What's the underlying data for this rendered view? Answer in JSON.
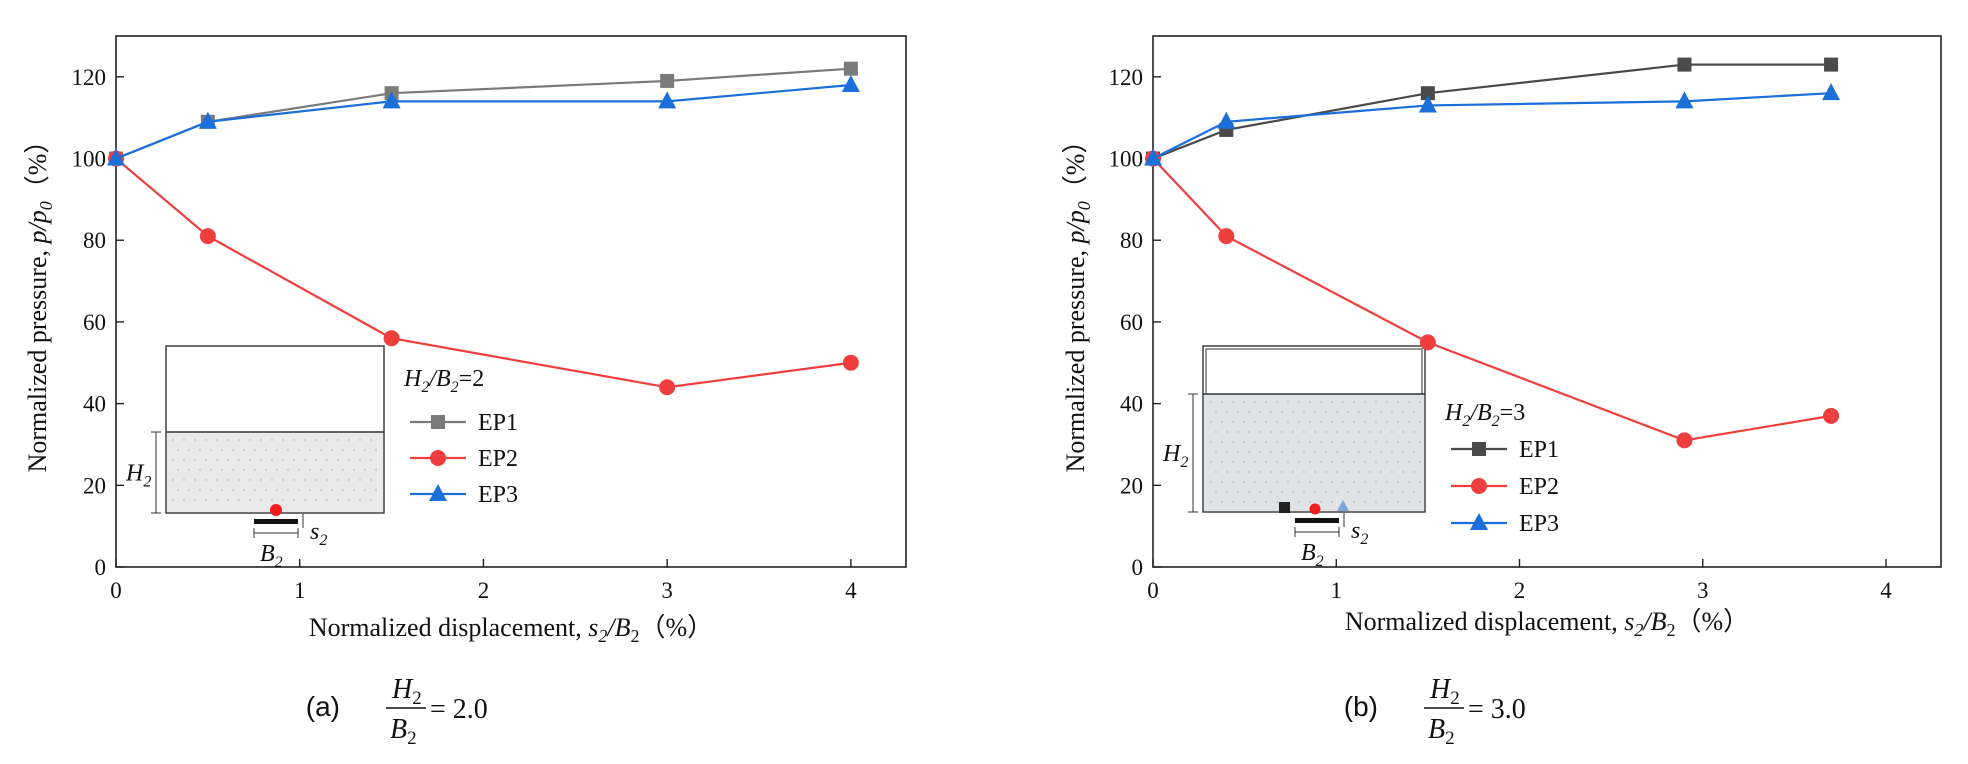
{
  "chart_data": [
    {
      "type": "line",
      "panel_id": "(a)",
      "caption": {
        "label": "(a)",
        "numerator": "H",
        "numerator_sub": "2",
        "denominator": "B",
        "denominator_sub": "2",
        "value": "= 2.0"
      },
      "xlabel": "Normalized displacement, ",
      "xlabel_var": "s",
      "xlabel_sub1": "2",
      "xlabel_var2": "/B",
      "xlabel_sub2": "2",
      "xlabel_unit": "（%）",
      "ylabel": "Normalized pressure, ",
      "ylabel_var": "p/p",
      "ylabel_sub": "0",
      "ylabel_unit": "（%）",
      "xlim": [
        0,
        4.3
      ],
      "ylim": [
        0,
        130
      ],
      "xticks": [
        0,
        1,
        2,
        3,
        4
      ],
      "yticks": [
        0,
        20,
        40,
        60,
        80,
        100,
        120
      ],
      "legend_title": {
        "a": "H",
        "a_sub": "2",
        "b": "/B",
        "b_sub": "2",
        "value": "=2"
      },
      "series": [
        {
          "name": "EP1",
          "color": "#7a7a7a",
          "marker": "square",
          "x": [
            0,
            0.5,
            1.5,
            3,
            4
          ],
          "y": [
            100,
            109,
            116,
            119,
            122
          ]
        },
        {
          "name": "EP2",
          "color": "#ef3e3e",
          "marker": "circle",
          "x": [
            0,
            0.5,
            1.5,
            3,
            4
          ],
          "y": [
            100,
            81,
            56,
            44,
            50
          ]
        },
        {
          "name": "EP3",
          "color": "#1a6fd8",
          "marker": "triangle",
          "x": [
            0,
            0.5,
            1.5,
            3,
            4
          ],
          "y": [
            100,
            109,
            114,
            114,
            118
          ]
        }
      ],
      "inset": {
        "h_label": "H",
        "h_sub": "2",
        "b_label": "B",
        "b_sub": "2",
        "s_label": "s",
        "s_sub": "2"
      }
    },
    {
      "type": "line",
      "panel_id": "(b)",
      "caption": {
        "label": "(b)",
        "numerator": "H",
        "numerator_sub": "2",
        "denominator": "B",
        "denominator_sub": "2",
        "value": "= 3.0"
      },
      "xlabel": "Normalized displacement, ",
      "xlabel_var": "s",
      "xlabel_sub1": "2",
      "xlabel_var2": "/B",
      "xlabel_sub2": "2",
      "xlabel_unit": "（%）",
      "ylabel": "Normalized pressure, ",
      "ylabel_var": "p/p",
      "ylabel_sub": "0",
      "ylabel_unit": "（%）",
      "xlim": [
        0,
        4.3
      ],
      "ylim": [
        0,
        130
      ],
      "xticks": [
        0,
        1,
        2,
        3,
        4
      ],
      "yticks": [
        0,
        20,
        40,
        60,
        80,
        100,
        120
      ],
      "legend_title": {
        "a": "H",
        "a_sub": "2",
        "b": "/B",
        "b_sub": "2",
        "value": "=3"
      },
      "series": [
        {
          "name": "EP1",
          "color": "#4a4a4a",
          "marker": "square",
          "x": [
            0,
            0.4,
            1.5,
            2.9,
            3.7
          ],
          "y": [
            100,
            107,
            116,
            123,
            123
          ]
        },
        {
          "name": "EP2",
          "color": "#ef3e3e",
          "marker": "circle",
          "x": [
            0,
            0.4,
            1.5,
            2.9,
            3.7
          ],
          "y": [
            100,
            81,
            55,
            31,
            37
          ]
        },
        {
          "name": "EP3",
          "color": "#1a6fd8",
          "marker": "triangle",
          "x": [
            0,
            0.4,
            1.5,
            2.9,
            3.7
          ],
          "y": [
            100,
            109,
            113,
            114,
            116
          ]
        }
      ],
      "inset": {
        "h_label": "H",
        "h_sub": "2",
        "b_label": "B",
        "b_sub": "2",
        "s_label": "s",
        "s_sub": "2"
      }
    }
  ]
}
